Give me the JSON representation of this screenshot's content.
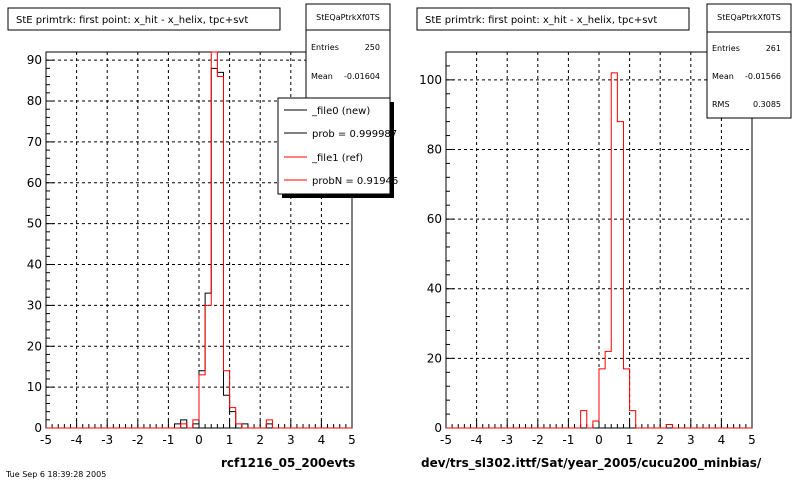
{
  "colors": {
    "new": "#000000",
    "ref": "#ff0000",
    "grid": "#000000",
    "panel_bg": "#ffffff"
  },
  "chart_data": [
    {
      "type": "histogram",
      "title": "StE primtrk: first point: x_hit - x_helix, tpc+svt",
      "xlabel": "rcf1216_05_200evts",
      "xlim": [
        -5,
        5
      ],
      "ylim": [
        0,
        92
      ],
      "xticks": [
        -5,
        -4,
        -3,
        -2,
        -1,
        0,
        1,
        2,
        3,
        4,
        5
      ],
      "yticks": [
        0,
        10,
        20,
        30,
        40,
        50,
        60,
        70,
        80,
        90
      ],
      "grid": true,
      "stats": {
        "name": "StEQaPtrkXf0TS",
        "rows": [
          [
            "Entries",
            "250"
          ],
          [
            "Mean",
            "-0.01604"
          ]
        ]
      },
      "legend": {
        "placement": "top-right",
        "entries": [
          "_file0 (new)",
          "prob = 0.999987",
          "_file1 (ref)",
          "probN = 0.91946"
        ]
      },
      "bin_width": 0.2,
      "bin_start": -5,
      "series": [
        {
          "name": "_file0 (new)",
          "color": "#000000",
          "values": [
            0,
            0,
            0,
            0,
            0,
            0,
            0,
            0,
            0,
            0,
            0,
            0,
            0,
            0,
            0,
            0,
            0,
            0,
            0,
            0,
            0,
            1,
            2,
            0,
            1,
            14,
            33,
            88,
            87,
            8,
            4,
            0,
            1,
            0,
            0,
            0,
            1,
            0,
            0,
            0,
            0,
            0,
            0,
            0,
            0,
            0,
            0,
            0,
            0,
            0
          ]
        },
        {
          "name": "_file1 (ref)",
          "color": "#ff0000",
          "values": [
            0,
            0,
            0,
            0,
            0,
            0,
            0,
            0,
            0,
            0,
            0,
            0,
            0,
            0,
            0,
            0,
            0,
            0,
            0,
            0,
            0,
            0,
            1,
            0,
            2,
            13,
            30,
            92,
            86,
            14,
            5,
            1,
            0,
            0,
            0,
            0,
            2,
            0,
            0,
            0,
            0,
            0,
            0,
            0,
            0,
            0,
            0,
            0,
            0,
            0
          ]
        }
      ]
    },
    {
      "type": "histogram",
      "title": "StE primtrk: first point: x_hit - x_helix, tpc+svt",
      "xlabel": "dev/trs_sl302.ittf/Sat/year_2005/cucu200_minbias/",
      "xlim": [
        -5,
        5
      ],
      "ylim": [
        0,
        108
      ],
      "xticks": [
        -5,
        -4,
        -3,
        -2,
        -1,
        0,
        1,
        2,
        3,
        4,
        5
      ],
      "yticks": [
        0,
        20,
        40,
        60,
        80,
        100
      ],
      "grid": true,
      "stats": {
        "name": "StEQaPtrkXf0TS",
        "rows": [
          [
            "Entries",
            "261"
          ],
          [
            "Mean",
            "-0.01566"
          ],
          [
            "RMS",
            "0.3085"
          ]
        ]
      },
      "bin_width": 0.2,
      "bin_start": -5,
      "series": [
        {
          "color": "#ff0000",
          "values": [
            0,
            0,
            0,
            0,
            0,
            0,
            0,
            0,
            0,
            0,
            0,
            0,
            0,
            0,
            0,
            0,
            0,
            0,
            0,
            0,
            0,
            0,
            5,
            0,
            2,
            17,
            22,
            102,
            88,
            17,
            5,
            0,
            0,
            0,
            0,
            0,
            1,
            0,
            0,
            0,
            0,
            0,
            0,
            0,
            0,
            0,
            0,
            0,
            0,
            0
          ]
        }
      ]
    }
  ],
  "footer_text": "Tue Sep 6 18:39:28 2005"
}
